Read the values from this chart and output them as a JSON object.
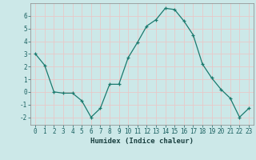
{
  "x": [
    0,
    1,
    2,
    3,
    4,
    5,
    6,
    7,
    8,
    9,
    10,
    11,
    12,
    13,
    14,
    15,
    16,
    17,
    18,
    19,
    20,
    21,
    22,
    23
  ],
  "y": [
    3.0,
    2.1,
    0.0,
    -0.1,
    -0.1,
    -0.7,
    -2.0,
    -1.3,
    0.6,
    0.6,
    2.7,
    3.9,
    5.2,
    5.7,
    6.6,
    6.5,
    5.6,
    4.5,
    2.2,
    1.1,
    0.2,
    -0.5,
    -2.0,
    -1.3
  ],
  "line_color": "#1a7a6e",
  "marker": "+",
  "bg_color": "#cce8e8",
  "grid_color": "#e8c8c8",
  "xlabel": "Humidex (Indice chaleur)",
  "xlim": [
    -0.5,
    23.5
  ],
  "ylim": [
    -2.6,
    7.0
  ],
  "yticks": [
    -2,
    -1,
    0,
    1,
    2,
    3,
    4,
    5,
    6
  ],
  "xtick_labels": [
    "0",
    "1",
    "2",
    "3",
    "4",
    "5",
    "6",
    "7",
    "8",
    "9",
    "10",
    "11",
    "12",
    "13",
    "14",
    "15",
    "16",
    "17",
    "18",
    "19",
    "20",
    "21",
    "22",
    "23"
  ],
  "tick_fontsize": 5.5,
  "xlabel_fontsize": 6.5
}
